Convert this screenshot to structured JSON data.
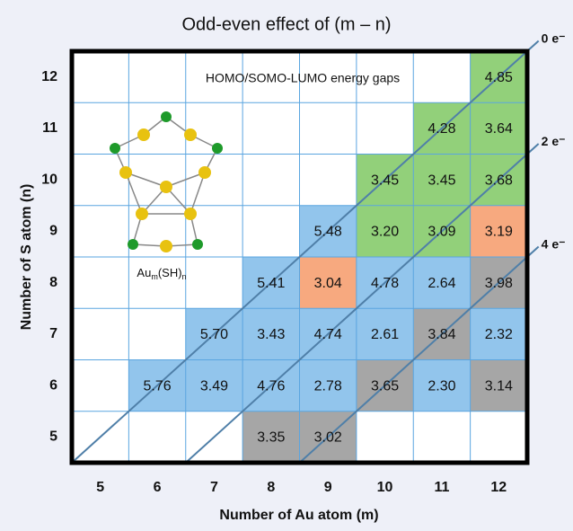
{
  "chart_data": {
    "type": "heatmap",
    "title": "Odd-even effect of  (m – n)",
    "subtitle": "HOMO/SOMO-LUMO energy gaps",
    "x_label": "Number of Au atom (m)",
    "y_label": "Number of S atom (n)",
    "inset_label": {
      "base": "Au",
      "sub1": "m",
      "mid": "(SH)",
      "sub2": "n"
    },
    "xlim": [
      4.5,
      12.5
    ],
    "ylim": [
      4.5,
      12.5
    ],
    "xticks": [
      5,
      6,
      7,
      8,
      9,
      10,
      11,
      12
    ],
    "yticks": [
      5,
      6,
      7,
      8,
      9,
      10,
      11,
      12
    ],
    "cells": [
      {
        "x": 12,
        "y": 12,
        "value": 4.85,
        "color": "#92d07a"
      },
      {
        "x": 11,
        "y": 11,
        "value": 4.28,
        "color": "#92d07a"
      },
      {
        "x": 12,
        "y": 11,
        "value": 3.64,
        "color": "#92d07a"
      },
      {
        "x": 10,
        "y": 10,
        "value": 3.45,
        "color": "#92d07a"
      },
      {
        "x": 11,
        "y": 10,
        "value": 3.45,
        "color": "#92d07a"
      },
      {
        "x": 12,
        "y": 10,
        "value": 3.68,
        "color": "#92d07a"
      },
      {
        "x": 9,
        "y": 9,
        "value": 5.48,
        "color": "#92c5ec"
      },
      {
        "x": 10,
        "y": 9,
        "value": 3.2,
        "label": "3.20",
        "color": "#92d07a"
      },
      {
        "x": 11,
        "y": 9,
        "value": 3.09,
        "color": "#92d07a"
      },
      {
        "x": 12,
        "y": 9,
        "value": 3.19,
        "color": "#f7a97f"
      },
      {
        "x": 8,
        "y": 8,
        "value": 5.41,
        "color": "#92c5ec"
      },
      {
        "x": 9,
        "y": 8,
        "value": 3.04,
        "color": "#f7a97f"
      },
      {
        "x": 10,
        "y": 8,
        "value": 4.78,
        "color": "#92c5ec"
      },
      {
        "x": 11,
        "y": 8,
        "value": 2.64,
        "color": "#92c5ec"
      },
      {
        "x": 12,
        "y": 8,
        "value": 3.98,
        "color": "#a6a6a6"
      },
      {
        "x": 7,
        "y": 7,
        "value": 5.7,
        "label": "5.70",
        "color": "#92c5ec"
      },
      {
        "x": 8,
        "y": 7,
        "value": 3.43,
        "color": "#92c5ec"
      },
      {
        "x": 9,
        "y": 7,
        "value": 4.74,
        "color": "#92c5ec"
      },
      {
        "x": 10,
        "y": 7,
        "value": 2.61,
        "color": "#92c5ec"
      },
      {
        "x": 11,
        "y": 7,
        "value": 3.84,
        "color": "#a6a6a6"
      },
      {
        "x": 12,
        "y": 7,
        "value": 2.32,
        "color": "#92c5ec"
      },
      {
        "x": 6,
        "y": 6,
        "value": 5.76,
        "color": "#92c5ec"
      },
      {
        "x": 7,
        "y": 6,
        "value": 3.49,
        "color": "#92c5ec"
      },
      {
        "x": 8,
        "y": 6,
        "value": 4.76,
        "color": "#92c5ec"
      },
      {
        "x": 9,
        "y": 6,
        "value": 2.78,
        "color": "#92c5ec"
      },
      {
        "x": 10,
        "y": 6,
        "value": 3.65,
        "color": "#a6a6a6"
      },
      {
        "x": 11,
        "y": 6,
        "value": 2.3,
        "label": "2.30",
        "color": "#92c5ec"
      },
      {
        "x": 12,
        "y": 6,
        "value": 3.14,
        "color": "#a6a6a6"
      },
      {
        "x": 8,
        "y": 5,
        "value": 3.35,
        "color": "#a6a6a6"
      },
      {
        "x": 9,
        "y": 5,
        "value": 3.02,
        "color": "#a6a6a6"
      }
    ],
    "diagonals": [
      {
        "offset": 0,
        "label": "0 e⁻"
      },
      {
        "offset": 2,
        "label": "2 e⁻"
      },
      {
        "offset": 4,
        "label": "4 e⁻"
      }
    ],
    "diagonal_color": "#4f7fa8"
  }
}
